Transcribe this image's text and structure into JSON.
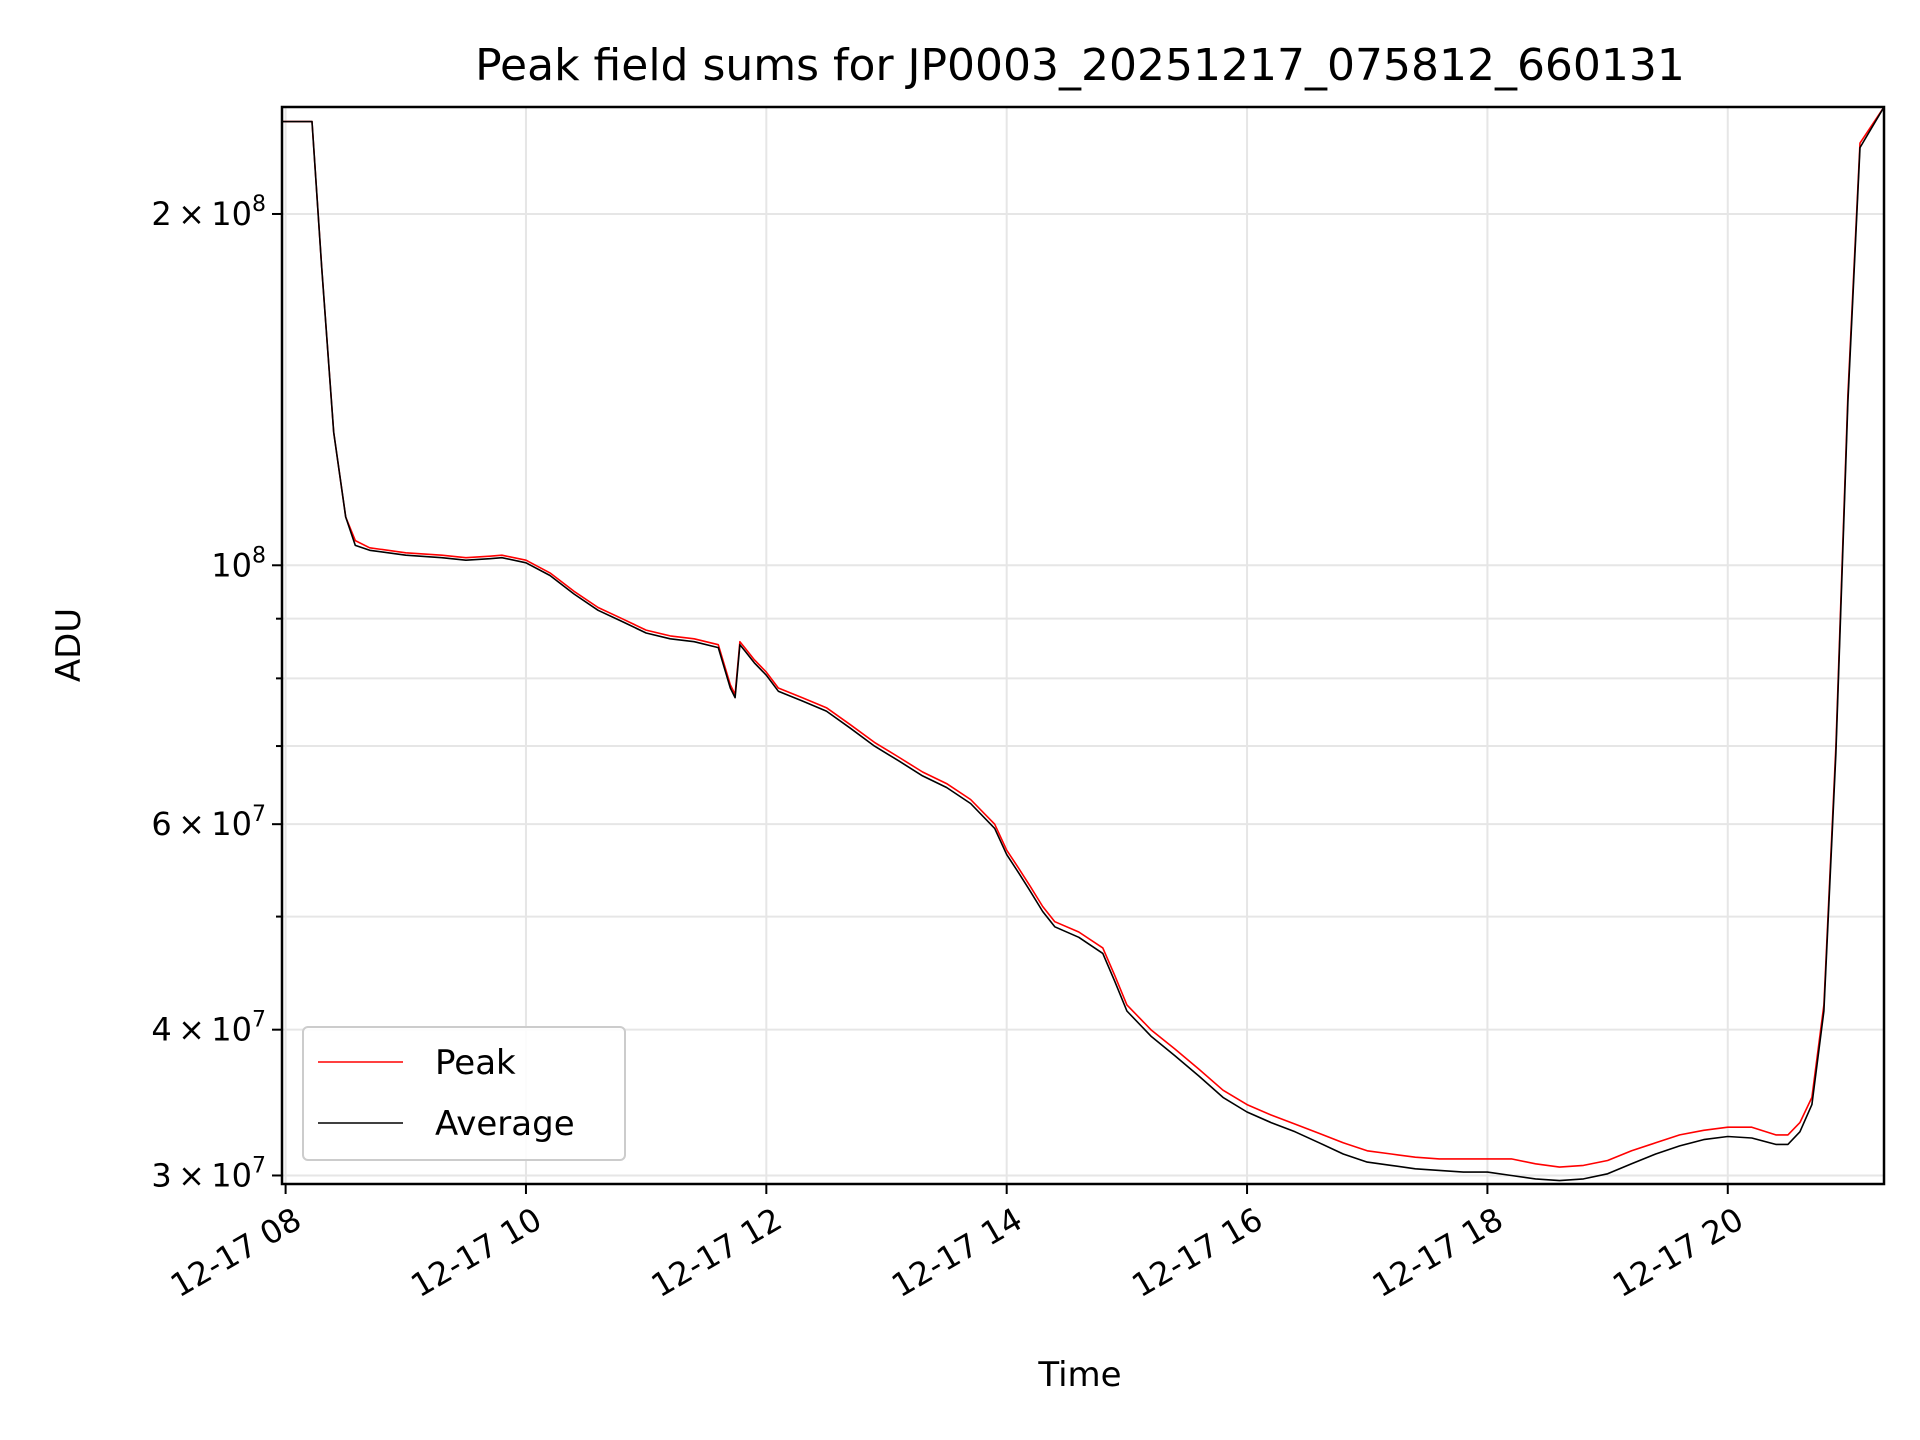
{
  "chart_data": {
    "type": "line",
    "title": "Peak field sums for JP0003_20251217_075812_660131",
    "xlabel": "Time",
    "ylabel": "ADU",
    "yscale": "log",
    "grid": true,
    "legend_position": "lower-left",
    "x_units": "hours",
    "xlim": [
      7.97,
      21.3
    ],
    "ylim": [
      29500000,
      247000000
    ],
    "x_ticks": [
      8,
      10,
      12,
      14,
      16,
      18,
      20
    ],
    "x_tick_labels": [
      "12-17 08",
      "12-17 10",
      "12-17 12",
      "12-17 14",
      "12-17 16",
      "12-17 18",
      "12-17 20"
    ],
    "y_major_ticks": [
      {
        "value": 30000000,
        "mant": "3",
        "op": "×",
        "base": "10",
        "exp": "7"
      },
      {
        "value": 40000000,
        "mant": "4",
        "op": "×",
        "base": "10",
        "exp": "7"
      },
      {
        "value": 60000000,
        "mant": "6",
        "op": "×",
        "base": "10",
        "exp": "7"
      },
      {
        "value": 100000000,
        "mant": "",
        "op": "",
        "base": "10",
        "exp": "8"
      },
      {
        "value": 200000000,
        "mant": "2",
        "op": "×",
        "base": "10",
        "exp": "8"
      }
    ],
    "y_minor_ticks": [
      50000000,
      70000000,
      80000000,
      90000000
    ],
    "series": [
      {
        "name": "Peak",
        "color": "#ff0000",
        "x": [
          7.97,
          8.22,
          8.3,
          8.4,
          8.5,
          8.58,
          8.7,
          9.0,
          9.3,
          9.5,
          9.7,
          9.8,
          10.0,
          10.2,
          10.4,
          10.6,
          10.8,
          11.0,
          11.2,
          11.4,
          11.6,
          11.7,
          11.74,
          11.78,
          11.82,
          11.9,
          12.0,
          12.1,
          12.3,
          12.5,
          12.7,
          12.9,
          13.1,
          13.3,
          13.5,
          13.7,
          13.9,
          14.0,
          14.1,
          14.2,
          14.3,
          14.4,
          14.6,
          14.8,
          14.9,
          15.0,
          15.2,
          15.4,
          15.6,
          15.8,
          16.0,
          16.2,
          16.4,
          16.6,
          16.8,
          17.0,
          17.2,
          17.4,
          17.6,
          17.8,
          18.0,
          18.2,
          18.4,
          18.6,
          18.8,
          19.0,
          19.2,
          19.4,
          19.6,
          19.8,
          20.0,
          20.2,
          20.4,
          20.5,
          20.6,
          20.7,
          20.8,
          20.9,
          21.0,
          21.1,
          21.3
        ],
        "values": [
          240000000,
          240000000,
          180000000,
          130000000,
          110000000,
          105000000,
          103500000,
          102500000,
          102000000,
          101500000,
          101800000,
          102000000,
          101000000,
          98500000,
          95000000,
          92000000,
          90000000,
          88000000,
          87000000,
          86500000,
          85500000,
          79000000,
          77500000,
          86000000,
          85000000,
          83000000,
          81000000,
          78500000,
          77000000,
          75500000,
          73000000,
          70500000,
          68500000,
          66500000,
          65000000,
          63000000,
          60000000,
          57000000,
          55000000,
          53000000,
          51000000,
          49500000,
          48500000,
          47000000,
          44500000,
          42000000,
          40000000,
          38500000,
          37000000,
          35500000,
          34500000,
          33800000,
          33200000,
          32600000,
          32000000,
          31500000,
          31300000,
          31100000,
          31000000,
          31000000,
          31000000,
          31000000,
          30700000,
          30500000,
          30600000,
          30900000,
          31500000,
          32000000,
          32500000,
          32800000,
          33000000,
          33000000,
          32500000,
          32500000,
          33300000,
          35000000,
          42000000,
          70000000,
          140000000,
          230000000,
          247000000
        ]
      },
      {
        "name": "Average",
        "color": "#000000",
        "x": [
          7.97,
          8.22,
          8.3,
          8.4,
          8.5,
          8.58,
          8.7,
          9.0,
          9.3,
          9.5,
          9.7,
          9.8,
          10.0,
          10.2,
          10.4,
          10.6,
          10.8,
          11.0,
          11.2,
          11.4,
          11.6,
          11.7,
          11.74,
          11.78,
          11.82,
          11.9,
          12.0,
          12.1,
          12.3,
          12.5,
          12.7,
          12.9,
          13.1,
          13.3,
          13.5,
          13.7,
          13.9,
          14.0,
          14.1,
          14.2,
          14.3,
          14.4,
          14.6,
          14.8,
          14.9,
          15.0,
          15.2,
          15.4,
          15.6,
          15.8,
          16.0,
          16.2,
          16.4,
          16.6,
          16.8,
          17.0,
          17.2,
          17.4,
          17.6,
          17.8,
          18.0,
          18.2,
          18.4,
          18.6,
          18.8,
          19.0,
          19.2,
          19.4,
          19.6,
          19.8,
          20.0,
          20.2,
          20.4,
          20.5,
          20.6,
          20.7,
          20.8,
          20.9,
          21.0,
          21.1,
          21.3
        ],
        "values": [
          240000000,
          240000000,
          180000000,
          130000000,
          110000000,
          104000000,
          103000000,
          102000000,
          101500000,
          101000000,
          101300000,
          101500000,
          100500000,
          98000000,
          94500000,
          91500000,
          89500000,
          87500000,
          86500000,
          86000000,
          85000000,
          78500000,
          77000000,
          85500000,
          84500000,
          82500000,
          80500000,
          78000000,
          76500000,
          75000000,
          72500000,
          70000000,
          68000000,
          66000000,
          64500000,
          62500000,
          59500000,
          56500000,
          54500000,
          52500000,
          50500000,
          49000000,
          48000000,
          46500000,
          44000000,
          41500000,
          39500000,
          38000000,
          36500000,
          35000000,
          34000000,
          33300000,
          32700000,
          32000000,
          31300000,
          30800000,
          30600000,
          30400000,
          30300000,
          30200000,
          30200000,
          30000000,
          29800000,
          29700000,
          29800000,
          30100000,
          30700000,
          31300000,
          31800000,
          32200000,
          32400000,
          32300000,
          31900000,
          31900000,
          32700000,
          34500000,
          41500000,
          69000000,
          138000000,
          228000000,
          247000000
        ]
      }
    ]
  }
}
